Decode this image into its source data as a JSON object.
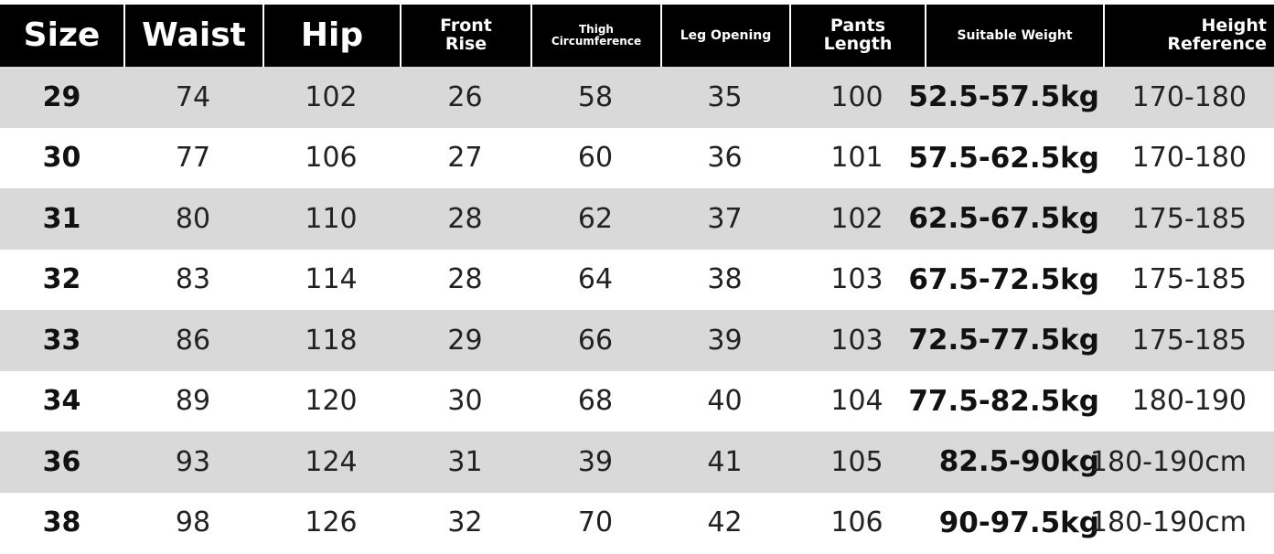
{
  "headers": [
    "Size",
    "Waist",
    "Hip",
    "Front\nRise",
    "Thigh\nCircumference",
    "Leg Opening",
    "Pants\nLength",
    "Suitable Weight",
    "Height\nReference"
  ],
  "rows": [
    [
      "29",
      "74",
      "102",
      "26",
      "58",
      "35",
      "100",
      "52.5-57.5kg",
      "170-180"
    ],
    [
      "30",
      "77",
      "106",
      "27",
      "60",
      "36",
      "101",
      "57.5-62.5kg",
      "170-180"
    ],
    [
      "31",
      "80",
      "110",
      "28",
      "62",
      "37",
      "102",
      "62.5-67.5kg",
      "175-185"
    ],
    [
      "32",
      "83",
      "114",
      "28",
      "64",
      "38",
      "103",
      "67.5-72.5kg",
      "175-185"
    ],
    [
      "33",
      "86",
      "118",
      "29",
      "66",
      "39",
      "103",
      "72.5-77.5kg",
      "175-185"
    ],
    [
      "34",
      "89",
      "120",
      "30",
      "68",
      "40",
      "104",
      "77.5-82.5kg",
      "180-190"
    ],
    [
      "36",
      "93",
      "124",
      "31",
      "39",
      "41",
      "105",
      "82.5-90kg",
      "180-190cm"
    ],
    [
      "38",
      "98",
      "126",
      "32",
      "70",
      "42",
      "106",
      "90-97.5kg",
      "180-190cm"
    ]
  ],
  "colors": {
    "header_bg": "#000000",
    "header_text": "#ffffff",
    "stripe": "#d9d9d9"
  }
}
